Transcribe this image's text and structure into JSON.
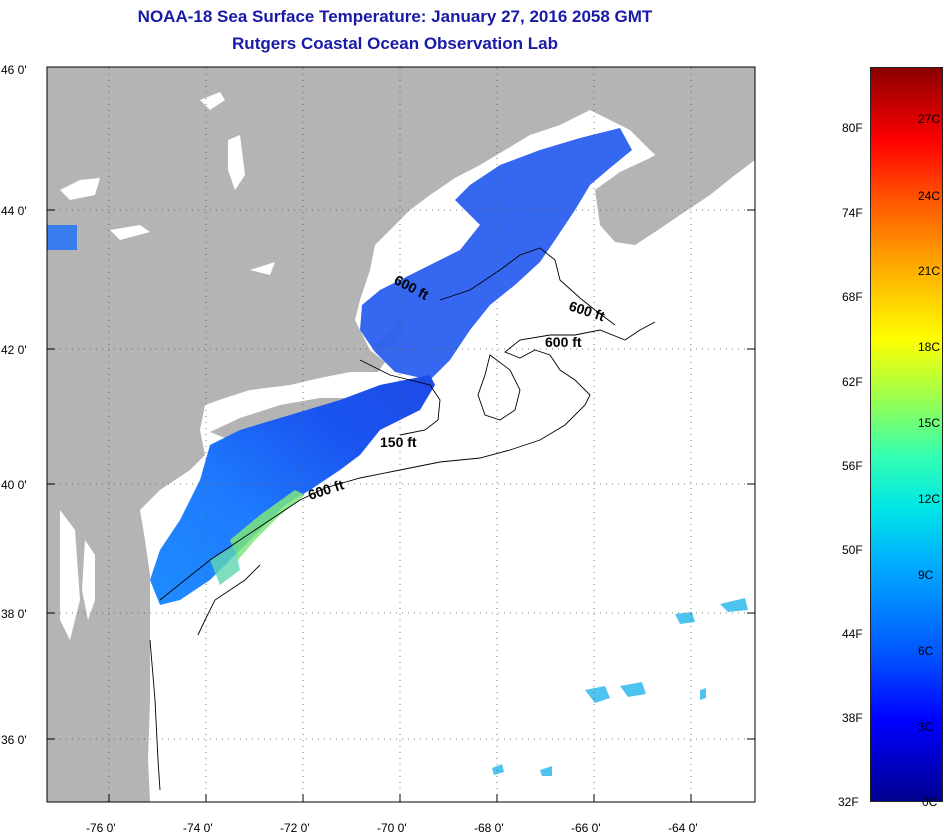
{
  "title": "NOAA-18 Sea Surface Temperature:  January 27, 2016 2058 GMT",
  "subtitle": "Rutgers Coastal Ocean Observation Lab",
  "lat_ticks": [
    "46 0'",
    "44 0'",
    "42 0'",
    "40 0'",
    "38 0'",
    "36 0'"
  ],
  "lon_ticks": [
    "-76 0'",
    "-74 0'",
    "-72 0'",
    "-70 0'",
    "-68 0'",
    "-66 0'",
    "-64 0'"
  ],
  "contour_labels": [
    "600 ft",
    "600 ft",
    "600 ft",
    "150 ft",
    "600 ft"
  ],
  "colorbar": {
    "fahrenheit": [
      "80F",
      "74F",
      "68F",
      "62F",
      "56F",
      "50F",
      "44F",
      "38F",
      "32F"
    ],
    "celsius": [
      "27C",
      "24C",
      "21C",
      "18C",
      "15C",
      "12C",
      "9C",
      "6C",
      "3C",
      "0C"
    ]
  },
  "colors": {
    "title": "#1a1aa8",
    "land": "#b4b4b4",
    "ocean": "#ffffff",
    "sst_cold": "#1e50ff",
    "sst_mid": "#1e9bff",
    "sst_warm": "#78e678"
  }
}
